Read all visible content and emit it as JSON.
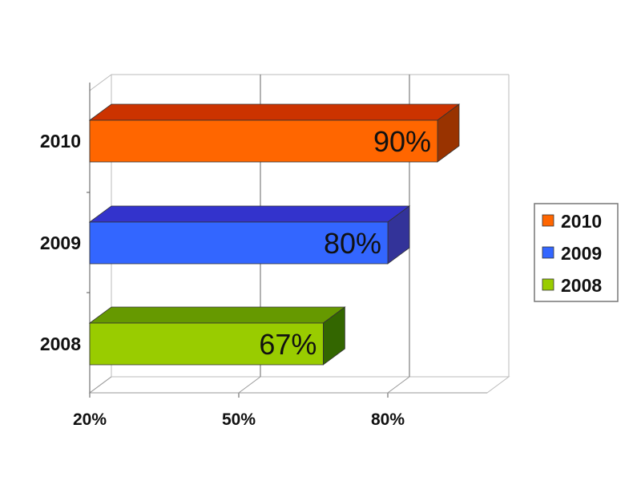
{
  "chart_data": {
    "type": "bar",
    "orientation": "horizontal",
    "style": "3d",
    "categories": [
      "2010",
      "2009",
      "2008"
    ],
    "values": [
      90,
      80,
      67
    ],
    "data_labels": [
      "90%",
      "80%",
      "67%"
    ],
    "colors": [
      "#FF6600",
      "#3366FF",
      "#99CC00"
    ],
    "top_colors": [
      "#CC3300",
      "#3333CC",
      "#669900"
    ],
    "side_colors": [
      "#993300",
      "#333399",
      "#336600"
    ],
    "xlim": [
      20,
      100
    ],
    "x_ticks": [
      20,
      50,
      80
    ],
    "x_tick_labels": [
      "20%",
      "50%",
      "80%"
    ],
    "grid": true,
    "legend": {
      "placement": "right",
      "entries": [
        "2010",
        "2009",
        "2008"
      ]
    }
  }
}
